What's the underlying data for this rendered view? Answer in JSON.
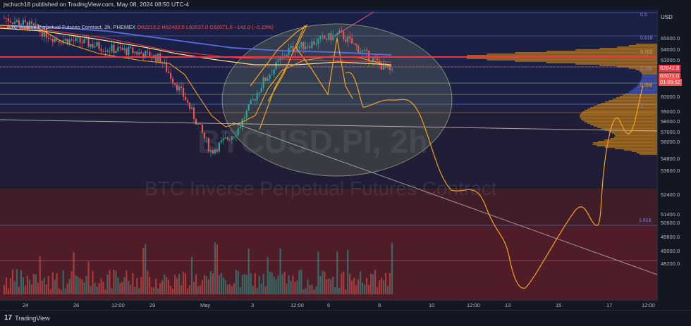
{
  "header": {
    "published": "jschuch18 published on TradingView.com, May 08, 2024 08:50 UTC-4"
  },
  "legend": {
    "symbol": "BTC Inverse Perpetual Futures Contract, 2h, PHEMEX",
    "open": "O62213.2",
    "high": "H62402.5",
    "low": "L62037.0",
    "close": "C62071.0",
    "change": "−142.0 (−0.23%)"
  },
  "watermark": {
    "ticker": "BTCUSD.PI, 2h",
    "name": "BTC Inverse Perpetual Futures Contract"
  },
  "price_scale": {
    "currency": "USD",
    "ticks": [
      "65000.0",
      "64000.0",
      "63000.0",
      "62000.0",
      "61000.0",
      "60000.0",
      "59000.0",
      "58000.0",
      "57000.0",
      "56000.0",
      "54800.0",
      "53600.0",
      "52400.0",
      "51400.0",
      "50600.0",
      "49800.0",
      "49000.0",
      "48200.0"
    ],
    "label_red": "62842.8",
    "label_price": "62071.0",
    "label_timer": "01:09:52"
  },
  "time_axis": {
    "labels": [
      "24",
      "26",
      "12:00",
      "29",
      "May",
      "3",
      "12:00",
      "6",
      "8",
      "10",
      "12:00",
      "13",
      "15",
      "17",
      "12:00"
    ]
  },
  "fib_levels": [
    "0.5",
    "0.618",
    "0.702",
    "0.786",
    "0.886",
    "1",
    "1.618"
  ],
  "branding": {
    "logo": "TradingView"
  },
  "colors": {
    "background": "#131722",
    "bull": "#26a69a",
    "bear": "#ef5350",
    "orange": "#f7a21b",
    "yellow": "#ffe082",
    "blue": "#5b6ee1",
    "red_line": "#f23645"
  },
  "chart_data": {
    "type": "line",
    "title": "BTC Inverse Perpetual Futures Contract, 2h, PHEMEX",
    "xlabel": "",
    "ylabel": "",
    "x_ticks": [
      "24",
      "26",
      "12:00",
      "29",
      "May",
      "3",
      "12:00",
      "6",
      "8",
      "10",
      "12:00",
      "13",
      "15",
      "17",
      "12:00"
    ],
    "ylim": [
      48000,
      66000
    ],
    "price_path": [
      {
        "x": "Apr 23",
        "y": 65500
      },
      {
        "x": "Apr 24",
        "y": 65000
      },
      {
        "x": "Apr 25",
        "y": 64200
      },
      {
        "x": "Apr 26",
        "y": 64000
      },
      {
        "x": "Apr 27",
        "y": 63600
      },
      {
        "x": "Apr 28",
        "y": 63400
      },
      {
        "x": "Apr 29",
        "y": 63000
      },
      {
        "x": "Apr 30",
        "y": 60500
      },
      {
        "x": "May 1",
        "y": 57200
      },
      {
        "x": "May 2",
        "y": 58500
      },
      {
        "x": "May 3",
        "y": 61500
      },
      {
        "x": "May 4",
        "y": 63500
      },
      {
        "x": "May 5",
        "y": 64000
      },
      {
        "x": "May 6",
        "y": 64500
      },
      {
        "x": "May 7",
        "y": 63200
      },
      {
        "x": "May 8",
        "y": 62071
      }
    ],
    "series": [
      {
        "name": "projection",
        "values": [
          {
            "x": "May 8",
            "y": 62071
          },
          {
            "x": "May 9",
            "y": 61000
          },
          {
            "x": "May 10",
            "y": 56500
          },
          {
            "x": "May 11",
            "y": 55800
          },
          {
            "x": "May 12",
            "y": 51000
          },
          {
            "x": "May 13",
            "y": 48200
          },
          {
            "x": "May 14",
            "y": 50500
          },
          {
            "x": "May 15",
            "y": 53000
          },
          {
            "x": "May 16",
            "y": 52200
          },
          {
            "x": "May 17",
            "y": 58500
          },
          {
            "x": "May 18",
            "y": 61200
          }
        ]
      }
    ],
    "levels": {
      "resistance_red": 62842.8,
      "fib_0.5": 65800,
      "fib_0.618": 64700,
      "fib_0.702": 63100,
      "fib_0.786": 62200,
      "fib_0.886": 61000,
      "fib_1": 60000,
      "fib_1.618": 52400
    },
    "grid": false,
    "legend_position": "top-left"
  }
}
